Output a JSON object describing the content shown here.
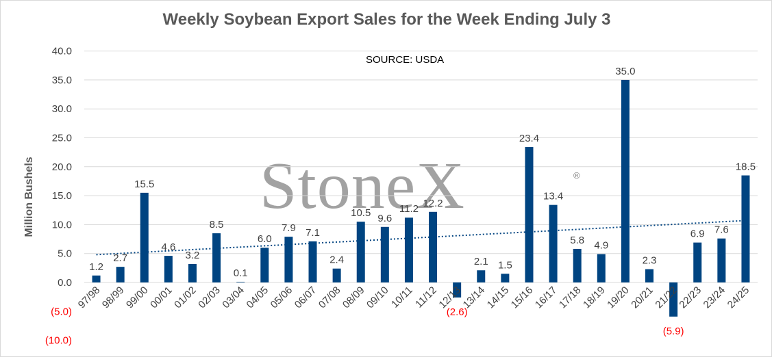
{
  "chart_data": {
    "type": "bar",
    "title": "Weekly Soybean Export Sales for the Week Ending July 3",
    "ylabel": "Million Bushels",
    "annotation": "SOURCE: USDA",
    "watermark": "StoneX",
    "watermark_mark": "®",
    "ylim": [
      -10,
      40
    ],
    "yticks": [
      -10,
      -5,
      0,
      5,
      10,
      15,
      20,
      25,
      30,
      35,
      40
    ],
    "ytick_labels": [
      "(10.0)",
      "(5.0)",
      "0.0",
      "5.0",
      "10.0",
      "15.0",
      "20.0",
      "25.0",
      "30.0",
      "35.0",
      "40.0"
    ],
    "grid": true,
    "categories": [
      "97/98",
      "98/99",
      "99/00",
      "00/01",
      "01/02",
      "02/03",
      "03/04",
      "04/05",
      "05/06",
      "06/07",
      "07/08",
      "08/09",
      "09/10",
      "10/11",
      "11/12",
      "12/13",
      "13/14",
      "14/15",
      "15/16",
      "16/17",
      "17/18",
      "18/19",
      "19/20",
      "20/21",
      "21/22",
      "22/23",
      "23/24",
      "24/25"
    ],
    "values": [
      1.2,
      2.7,
      15.5,
      4.6,
      3.2,
      8.5,
      0.1,
      6.0,
      7.9,
      7.1,
      2.4,
      10.5,
      9.6,
      11.2,
      12.2,
      -2.6,
      2.1,
      1.5,
      23.4,
      13.4,
      5.8,
      4.9,
      35.0,
      2.3,
      -5.9,
      6.9,
      7.6,
      18.5
    ],
    "data_labels": [
      "1.2",
      "2.7",
      "15.5",
      "4.6",
      "3.2",
      "8.5",
      "0.1",
      "6.0",
      "7.9",
      "7.1",
      "2.4",
      "10.5",
      "9.6",
      "11.2",
      "12.2",
      "(2.6)",
      "2.1",
      "1.5",
      "23.4",
      "13.4",
      "5.8",
      "4.9",
      "35.0",
      "2.3",
      "(5.9)",
      "6.9",
      "7.6",
      "18.5"
    ],
    "trendline": {
      "style": "dotted",
      "start": 4.8,
      "end": 10.7
    },
    "colors": {
      "bar": "#004481",
      "trend": "#004481",
      "negative_text": "#ff0000",
      "text": "#404040",
      "grid": "#d9d9d9"
    }
  }
}
